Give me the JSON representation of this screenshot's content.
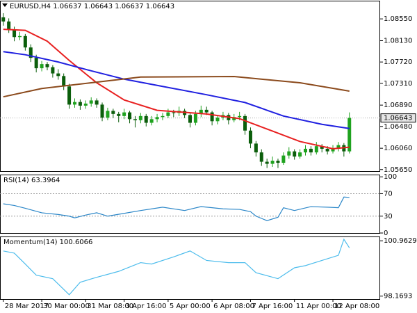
{
  "chart_data": [
    {
      "type": "candlestick",
      "title": "EURUSD,H4  1.06637 1.06643 1.06637 1.06643",
      "categories": [
        "28 Mar 2017",
        null,
        null,
        null,
        null,
        null,
        null,
        "30 Mar 00:00",
        null,
        null,
        null,
        null,
        null,
        null,
        null,
        "31 Mar 08:00",
        null,
        null,
        null,
        null,
        null,
        null,
        "3 Apr 16:00",
        null,
        null,
        null,
        null,
        null,
        null,
        null,
        "5 Apr 00:00",
        null,
        null,
        null,
        null,
        null,
        null,
        null,
        "6 Apr 08:00",
        null,
        null,
        null,
        null,
        null,
        null,
        "7 Apr 16:00",
        null,
        null,
        null,
        null,
        null,
        null,
        null,
        "11 Apr 00:00",
        null,
        null,
        null,
        null,
        null,
        null,
        "12 Apr 08:00",
        null,
        null,
        null
      ],
      "open": [
        1.0858,
        1.085,
        1.0835,
        1.082,
        1.0822,
        1.08,
        1.078,
        1.076,
        1.0768,
        1.0762,
        1.075,
        1.0745,
        1.0725,
        1.069,
        1.0695,
        1.0688,
        1.0692,
        1.0698,
        1.069,
        1.0665,
        1.0678,
        1.0672,
        1.0668,
        1.0675,
        1.0662,
        1.066,
        1.0668,
        1.0655,
        1.0662,
        1.0666,
        1.0668,
        1.0675,
        1.0674,
        1.0678,
        1.067,
        1.0655,
        1.0672,
        1.068,
        1.0675,
        1.0658,
        1.0665,
        1.067,
        1.066,
        1.0666,
        1.0668,
        1.064,
        1.0615,
        1.0598,
        1.058,
        1.0576,
        1.0582,
        1.0578,
        1.0592,
        1.06,
        1.059,
        1.0598,
        1.0605,
        1.0598,
        1.061,
        1.0605,
        1.06,
        1.0606,
        1.0612,
        1.06
      ],
      "high": [
        1.0866,
        1.0856,
        1.084,
        1.083,
        1.0826,
        1.0806,
        1.0786,
        1.0774,
        1.0772,
        1.0766,
        1.0758,
        1.075,
        1.073,
        1.0702,
        1.07,
        1.0698,
        1.0704,
        1.0702,
        1.0694,
        1.0684,
        1.0682,
        1.0676,
        1.0682,
        1.0678,
        1.0668,
        1.0674,
        1.0672,
        1.0668,
        1.0672,
        1.0674,
        1.0682,
        1.068,
        1.0686,
        1.0682,
        1.0674,
        1.0678,
        1.0688,
        1.0686,
        1.0678,
        1.067,
        1.0676,
        1.0674,
        1.0672,
        1.0676,
        1.0672,
        1.0646,
        1.062,
        1.0604,
        1.0586,
        1.059,
        1.0586,
        1.0598,
        1.0608,
        1.0604,
        1.0604,
        1.0612,
        1.061,
        1.0618,
        1.0614,
        1.061,
        1.0612,
        1.0618,
        1.0616,
        1.0675
      ],
      "low": [
        1.0842,
        1.0828,
        1.0812,
        1.0814,
        1.0794,
        1.0772,
        1.0752,
        1.0754,
        1.0756,
        1.0742,
        1.0738,
        1.0718,
        1.0682,
        1.0684,
        1.068,
        1.0682,
        1.0686,
        1.0684,
        1.0658,
        1.066,
        1.0664,
        1.0656,
        1.0662,
        1.0654,
        1.0646,
        1.0654,
        1.0648,
        1.065,
        1.0656,
        1.066,
        1.0664,
        1.0666,
        1.0668,
        1.0664,
        1.0646,
        1.065,
        1.0666,
        1.067,
        1.065,
        1.0652,
        1.066,
        1.0652,
        1.0656,
        1.066,
        1.0632,
        1.0606,
        1.059,
        1.0572,
        1.0568,
        1.057,
        1.0568,
        1.0574,
        1.0586,
        1.0584,
        1.0586,
        1.0592,
        1.0592,
        1.0594,
        1.0598,
        1.0594,
        1.0596,
        1.06,
        1.059,
        1.0596
      ],
      "close": [
        1.085,
        1.0835,
        1.082,
        1.0822,
        1.08,
        1.078,
        1.076,
        1.0768,
        1.0762,
        1.075,
        1.0745,
        1.0725,
        1.069,
        1.0695,
        1.0688,
        1.0692,
        1.0698,
        1.069,
        1.0665,
        1.0678,
        1.0672,
        1.0668,
        1.0675,
        1.0662,
        1.066,
        1.0668,
        1.0655,
        1.0662,
        1.0666,
        1.0668,
        1.0675,
        1.0674,
        1.0678,
        1.067,
        1.0655,
        1.0672,
        1.068,
        1.0675,
        1.0658,
        1.0665,
        1.067,
        1.066,
        1.0666,
        1.0668,
        1.064,
        1.0615,
        1.0598,
        1.058,
        1.0576,
        1.0582,
        1.0578,
        1.0592,
        1.06,
        1.059,
        1.0598,
        1.0605,
        1.0598,
        1.061,
        1.0605,
        1.06,
        1.0606,
        1.0612,
        1.06,
        1.06643
      ],
      "up_color": "#1fa21f",
      "down_color": "#0b5e0b",
      "series": [
        {
          "color": "#e82020",
          "x": [
            0,
            4,
            8,
            12,
            17,
            22,
            28,
            37,
            43,
            49,
            54,
            60,
            63
          ],
          "values": [
            1.0835,
            1.0833,
            1.0812,
            1.0775,
            1.0732,
            1.0699,
            1.0679,
            1.0672,
            1.0663,
            1.0639,
            1.0619,
            1.0605,
            1.0608
          ]
        },
        {
          "color": "#2020e0",
          "x": [
            0,
            4,
            10,
            16,
            22,
            29,
            37,
            44,
            51,
            58,
            63
          ],
          "values": [
            1.0792,
            1.0786,
            1.0772,
            1.0755,
            1.0739,
            1.0725,
            1.0709,
            1.0694,
            1.0668,
            1.0652,
            1.0644
          ]
        },
        {
          "color": "#8b4a1c",
          "x": [
            0,
            7,
            16,
            25,
            42,
            54,
            63
          ],
          "values": [
            1.0705,
            1.0721,
            1.0732,
            1.0743,
            1.0744,
            1.0732,
            1.0716
          ]
        }
      ],
      "last_price": {
        "value": 1.06643,
        "label": "1.06643"
      },
      "xlim": [
        -0.6,
        68.6
      ],
      "ylim": [
        1.0562,
        1.089
      ],
      "yticks": [
        {
          "value": 1.0855,
          "label": "1.08550"
        },
        {
          "value": 1.0813,
          "label": "1.08130"
        },
        {
          "value": 1.0772,
          "label": "1.07720"
        },
        {
          "value": 1.0731,
          "label": "1.07310"
        },
        {
          "value": 1.0689,
          "label": "1.06890"
        },
        {
          "value": 1.0648,
          "label": "1.06480"
        },
        {
          "value": 1.0606,
          "label": "1.06060"
        },
        {
          "value": 1.0565,
          "label": "1.05650"
        }
      ]
    },
    {
      "type": "line",
      "title": "RSI(14) 63.3964",
      "color": "#2a86c8",
      "x": [
        0,
        2,
        4,
        7,
        10,
        12,
        13,
        15,
        17,
        19,
        22,
        25,
        29,
        33,
        36,
        40,
        43,
        45,
        46,
        47,
        48,
        50,
        51,
        53,
        56,
        59,
        61,
        62,
        63
      ],
      "values": [
        52,
        49,
        44,
        36,
        33,
        30,
        27,
        32,
        36,
        30,
        35,
        40,
        46,
        40,
        47,
        43,
        42,
        38,
        30,
        26,
        22,
        28,
        45,
        40,
        47,
        46,
        45,
        64,
        63.3964
      ],
      "xlim": [
        -0.6,
        68.6
      ],
      "ylim": [
        0,
        104
      ],
      "yticks": [
        0,
        30,
        70,
        100
      ],
      "levels": [
        30,
        70
      ]
    },
    {
      "type": "line",
      "title": "Momentum(14) 100.6066",
      "color": "#4cbcec",
      "x": [
        0,
        2,
        4,
        6,
        9,
        12,
        14,
        17,
        21,
        25,
        27,
        31,
        34,
        37,
        41,
        44,
        46,
        50,
        53,
        55,
        58,
        61,
        62,
        63
      ],
      "values": [
        100.45,
        100.34,
        99.79,
        99.23,
        99.05,
        98.24,
        98.87,
        99.12,
        99.42,
        99.86,
        99.79,
        100.15,
        100.45,
        99.97,
        99.86,
        99.86,
        99.35,
        99.05,
        99.6,
        99.71,
        99.97,
        100.23,
        101.04,
        100.6066
      ],
      "xlim": [
        -0.6,
        68.6
      ],
      "ylim": [
        98.02,
        101.18
      ],
      "yticks": [
        98.1693,
        100.9629
      ]
    }
  ]
}
